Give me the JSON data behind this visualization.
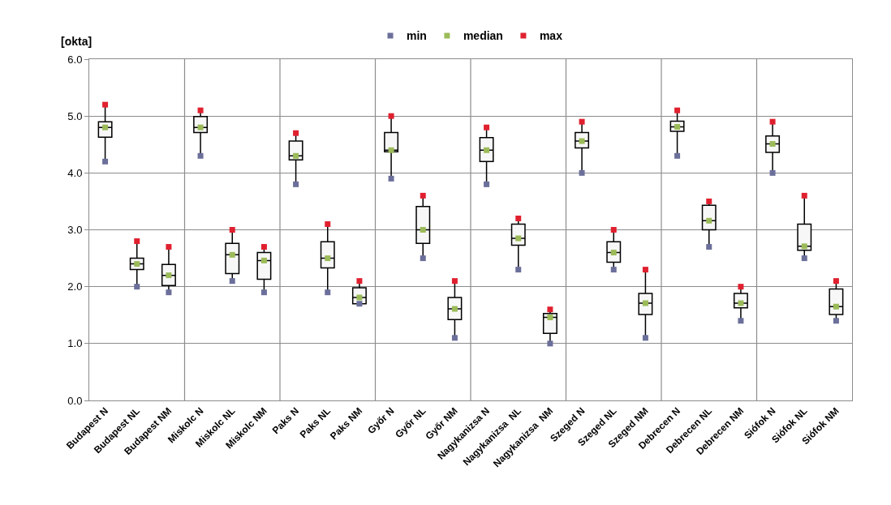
{
  "chart_data": {
    "type": "box",
    "ylabel": "[okta]",
    "categories": [
      "Budapest N",
      "Budapest NL",
      "Budapest NM",
      "Miskolc N",
      "Miskolc NL",
      "Miskolc NM",
      "Paks N",
      "Paks NL",
      "Paks NM",
      "Győr N",
      "Győr NL",
      "Győr NM",
      "Nagykanizsa N",
      "Nagykanizsa  NL",
      "Nagykanizsa  NM",
      "Szeged N",
      "Szeged NL",
      "Szeged NM",
      "Debrecen N",
      "Debrecen NL",
      "Debrecen NM",
      "Siófok N",
      "Siófok NL",
      "Siófok NM"
    ],
    "boxes": [
      {
        "low": 4.2,
        "q1": 4.63,
        "median": 4.8,
        "q3": 4.9,
        "high": 5.2
      },
      {
        "low": 2.0,
        "q1": 2.3,
        "median": 2.4,
        "q3": 2.5,
        "high": 2.8
      },
      {
        "low": 1.9,
        "q1": 2.02,
        "median": 2.2,
        "q3": 2.39,
        "high": 2.7
      },
      {
        "low": 4.3,
        "q1": 4.71,
        "median": 4.8,
        "q3": 4.99,
        "high": 5.1
      },
      {
        "low": 2.1,
        "q1": 2.23,
        "median": 2.56,
        "q3": 2.76,
        "high": 3.0
      },
      {
        "low": 1.9,
        "q1": 2.13,
        "median": 2.46,
        "q3": 2.6,
        "high": 2.7
      },
      {
        "low": 3.8,
        "q1": 4.23,
        "median": 4.3,
        "q3": 4.56,
        "high": 4.7
      },
      {
        "low": 1.9,
        "q1": 2.33,
        "median": 2.5,
        "q3": 2.79,
        "high": 3.1
      },
      {
        "low": 1.7,
        "q1": 1.7,
        "median": 1.81,
        "q3": 1.98,
        "high": 2.1
      },
      {
        "low": 3.9,
        "q1": 4.37,
        "median": 4.4,
        "q3": 4.71,
        "high": 5.0
      },
      {
        "low": 2.5,
        "q1": 2.76,
        "median": 3.0,
        "q3": 3.41,
        "high": 3.6
      },
      {
        "low": 1.1,
        "q1": 1.42,
        "median": 1.61,
        "q3": 1.81,
        "high": 2.1
      },
      {
        "low": 3.8,
        "q1": 4.2,
        "median": 4.4,
        "q3": 4.62,
        "high": 4.8
      },
      {
        "low": 2.3,
        "q1": 2.73,
        "median": 2.85,
        "q3": 3.1,
        "high": 3.2
      },
      {
        "low": 1.0,
        "q1": 1.18,
        "median": 1.46,
        "q3": 1.53,
        "high": 1.6
      },
      {
        "low": 4.0,
        "q1": 4.44,
        "median": 4.56,
        "q3": 4.71,
        "high": 4.9
      },
      {
        "low": 2.3,
        "q1": 2.43,
        "median": 2.6,
        "q3": 2.79,
        "high": 3.0
      },
      {
        "low": 1.1,
        "q1": 1.51,
        "median": 1.71,
        "q3": 1.88,
        "high": 2.3
      },
      {
        "low": 4.3,
        "q1": 4.73,
        "median": 4.81,
        "q3": 4.91,
        "high": 5.1
      },
      {
        "low": 2.7,
        "q1": 3.0,
        "median": 3.16,
        "q3": 3.43,
        "high": 3.5
      },
      {
        "low": 1.4,
        "q1": 1.63,
        "median": 1.71,
        "q3": 1.88,
        "high": 2.0
      },
      {
        "low": 4.0,
        "q1": 4.36,
        "median": 4.51,
        "q3": 4.65,
        "high": 4.9
      },
      {
        "low": 2.5,
        "q1": 2.64,
        "median": 2.71,
        "q3": 3.1,
        "high": 3.6
      },
      {
        "low": 1.4,
        "q1": 1.51,
        "median": 1.65,
        "q3": 1.96,
        "high": 2.1
      }
    ],
    "series": [
      {
        "type": "scatter",
        "name": "min",
        "color": "#6b6f9a",
        "values": [
          4.2,
          2.0,
          1.9,
          4.3,
          2.1,
          1.9,
          3.8,
          1.9,
          1.7,
          3.9,
          2.5,
          1.1,
          3.8,
          2.3,
          1.0,
          4.0,
          2.3,
          1.1,
          4.3,
          2.7,
          1.4,
          4.0,
          2.5,
          1.4
        ]
      },
      {
        "type": "scatter",
        "name": "median",
        "color": "#9bbb59",
        "values": [
          4.8,
          2.4,
          2.2,
          4.8,
          2.56,
          2.46,
          4.3,
          2.5,
          1.81,
          4.4,
          3.0,
          1.61,
          4.4,
          2.85,
          1.46,
          4.56,
          2.6,
          1.71,
          4.81,
          3.16,
          1.71,
          4.51,
          2.71,
          1.65
        ]
      },
      {
        "type": "scatter",
        "name": "max",
        "color": "#e0202f",
        "values": [
          5.2,
          2.8,
          2.7,
          5.1,
          3.0,
          2.7,
          4.7,
          3.1,
          2.1,
          5.0,
          3.6,
          2.1,
          4.8,
          3.2,
          1.6,
          4.9,
          3.0,
          2.3,
          5.1,
          3.5,
          2.0,
          4.9,
          3.6,
          2.1
        ]
      }
    ],
    "ylim": [
      0,
      6
    ],
    "yticks": [
      {
        "value": 0,
        "label": "0.0"
      },
      {
        "value": 1,
        "label": "1.0"
      },
      {
        "value": 2,
        "label": "2.0"
      },
      {
        "value": 3,
        "label": "3.0"
      },
      {
        "value": 4,
        "label": "4.0"
      },
      {
        "value": 5,
        "label": "5.0"
      },
      {
        "value": 6,
        "label": "6.0"
      }
    ],
    "grid": true,
    "legend": "top"
  }
}
